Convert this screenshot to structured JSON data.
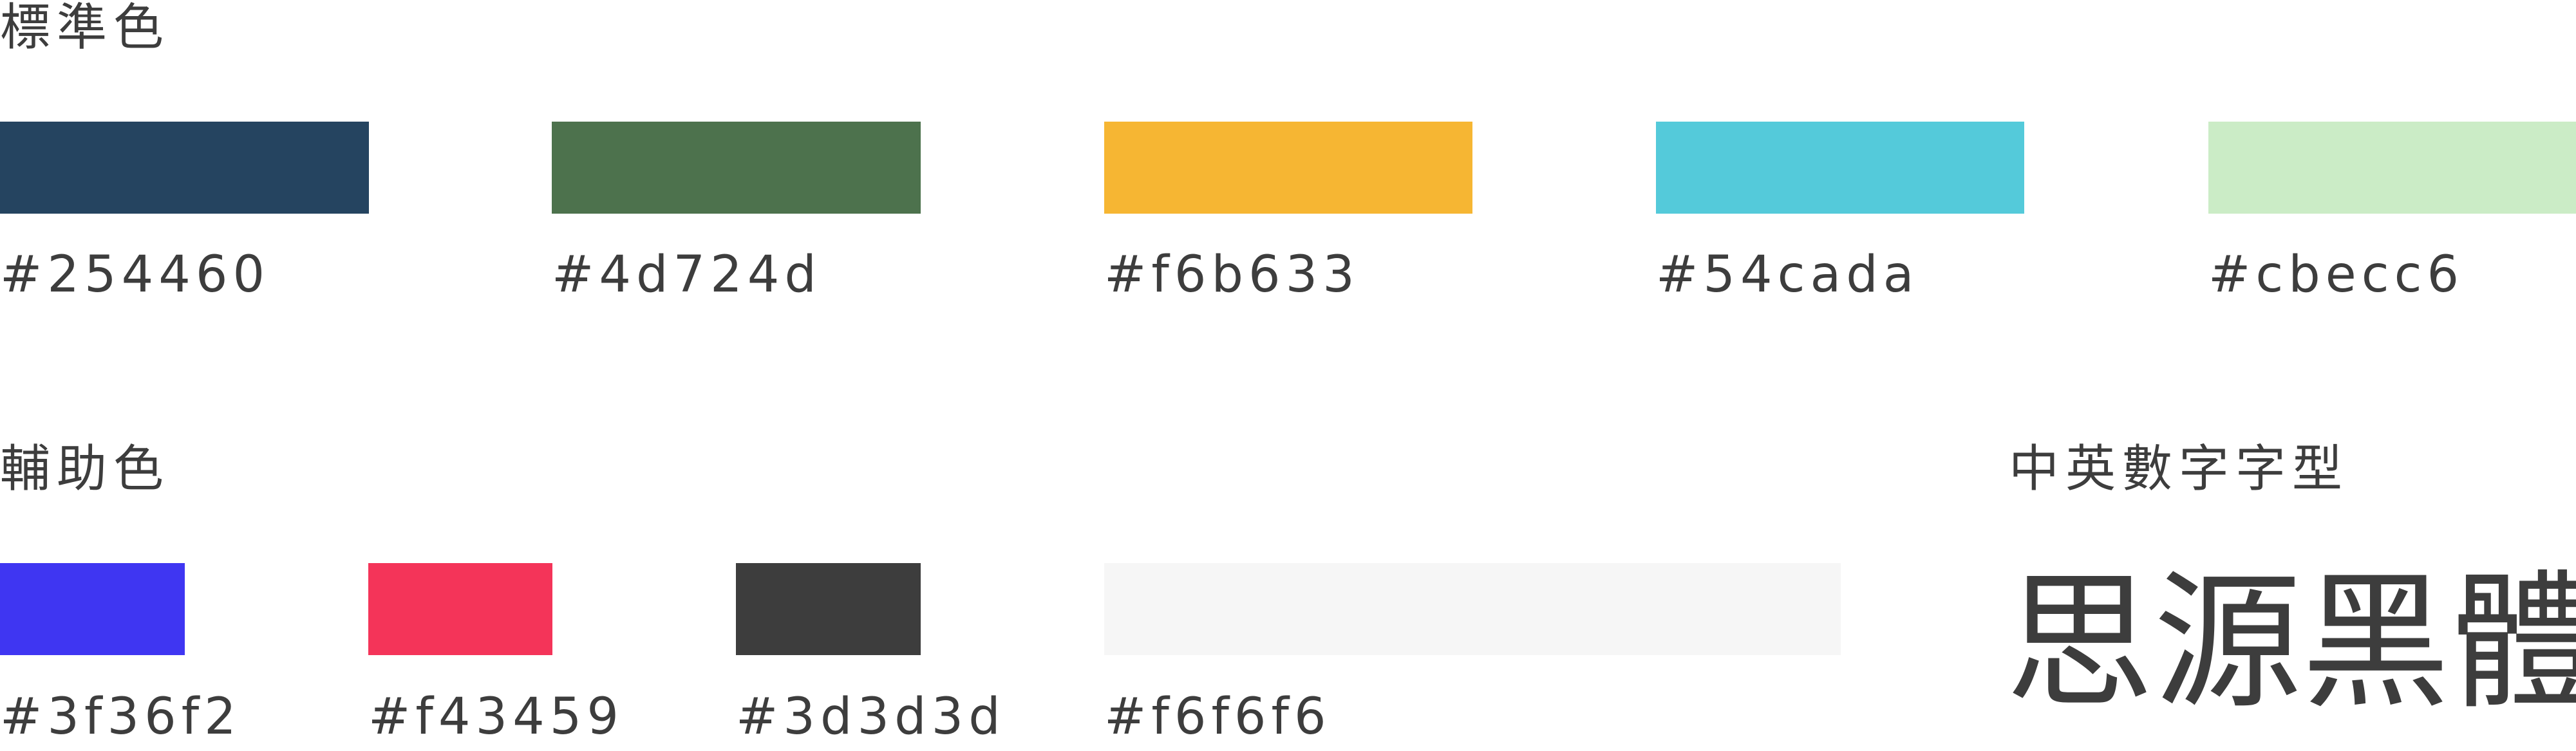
{
  "standard": {
    "title": "標準色",
    "swatches": [
      {
        "color": "#254460",
        "label": "#254460"
      },
      {
        "color": "#4d724d",
        "label": "#4d724d"
      },
      {
        "color": "#f6b633",
        "label": "#f6b633"
      },
      {
        "color": "#54cada",
        "label": "#54cada"
      },
      {
        "color": "#cbecc6",
        "label": "#cbecc6"
      }
    ]
  },
  "auxiliary": {
    "title": "輔助色",
    "swatches": [
      {
        "color": "#3f36f2",
        "label": "#3f36f2"
      },
      {
        "color": "#f43459",
        "label": "#f43459"
      },
      {
        "color": "#3d3d3d",
        "label": "#3d3d3d"
      },
      {
        "color": "#f6f6f6",
        "label": "#f6f6f6"
      }
    ]
  },
  "typeface": {
    "title": "中英數字字型",
    "sample": "思源黑體"
  }
}
